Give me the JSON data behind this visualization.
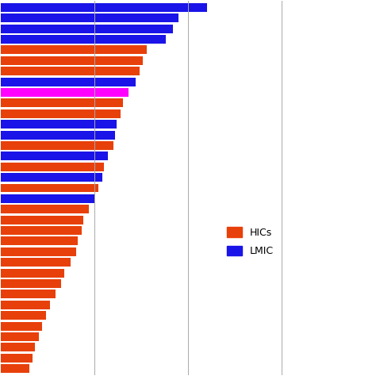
{
  "legend_labels": [
    "HICs",
    "LMIC"
  ],
  "legend_colors": [
    "#E8400A",
    "#1a14e8"
  ],
  "bar_data": [
    {
      "value": 55.0,
      "color": "#1a14e8"
    },
    {
      "value": 47.5,
      "color": "#1a14e8"
    },
    {
      "value": 46.0,
      "color": "#1a14e8"
    },
    {
      "value": 44.0,
      "color": "#1a14e8"
    },
    {
      "value": 39.0,
      "color": "#E8400A"
    },
    {
      "value": 38.0,
      "color": "#E8400A"
    },
    {
      "value": 37.0,
      "color": "#E8400A"
    },
    {
      "value": 36.0,
      "color": "#1a14e8"
    },
    {
      "value": 34.0,
      "color": "#FF00FF"
    },
    {
      "value": 32.5,
      "color": "#E8400A"
    },
    {
      "value": 32.0,
      "color": "#E8400A"
    },
    {
      "value": 31.0,
      "color": "#1a14e8"
    },
    {
      "value": 30.5,
      "color": "#1a14e8"
    },
    {
      "value": 30.0,
      "color": "#E8400A"
    },
    {
      "value": 28.5,
      "color": "#1a14e8"
    },
    {
      "value": 27.5,
      "color": "#E8400A"
    },
    {
      "value": 27.0,
      "color": "#1a14e8"
    },
    {
      "value": 26.0,
      "color": "#E8400A"
    },
    {
      "value": 25.0,
      "color": "#1a14e8"
    },
    {
      "value": 23.5,
      "color": "#E8400A"
    },
    {
      "value": 22.0,
      "color": "#E8400A"
    },
    {
      "value": 21.5,
      "color": "#E8400A"
    },
    {
      "value": 20.5,
      "color": "#E8400A"
    },
    {
      "value": 20.0,
      "color": "#E8400A"
    },
    {
      "value": 18.5,
      "color": "#E8400A"
    },
    {
      "value": 17.0,
      "color": "#E8400A"
    },
    {
      "value": 16.0,
      "color": "#E8400A"
    },
    {
      "value": 14.5,
      "color": "#E8400A"
    },
    {
      "value": 13.0,
      "color": "#E8400A"
    },
    {
      "value": 12.0,
      "color": "#E8400A"
    },
    {
      "value": 11.0,
      "color": "#E8400A"
    },
    {
      "value": 10.0,
      "color": "#E8400A"
    },
    {
      "value": 9.0,
      "color": "#E8400A"
    },
    {
      "value": 8.5,
      "color": "#E8400A"
    },
    {
      "value": 7.5,
      "color": "#E8400A"
    }
  ],
  "xlim": [
    0,
    100
  ],
  "gridline_x": [
    25,
    50,
    75,
    100
  ],
  "background_color": "#ffffff",
  "bar_height": 0.82
}
